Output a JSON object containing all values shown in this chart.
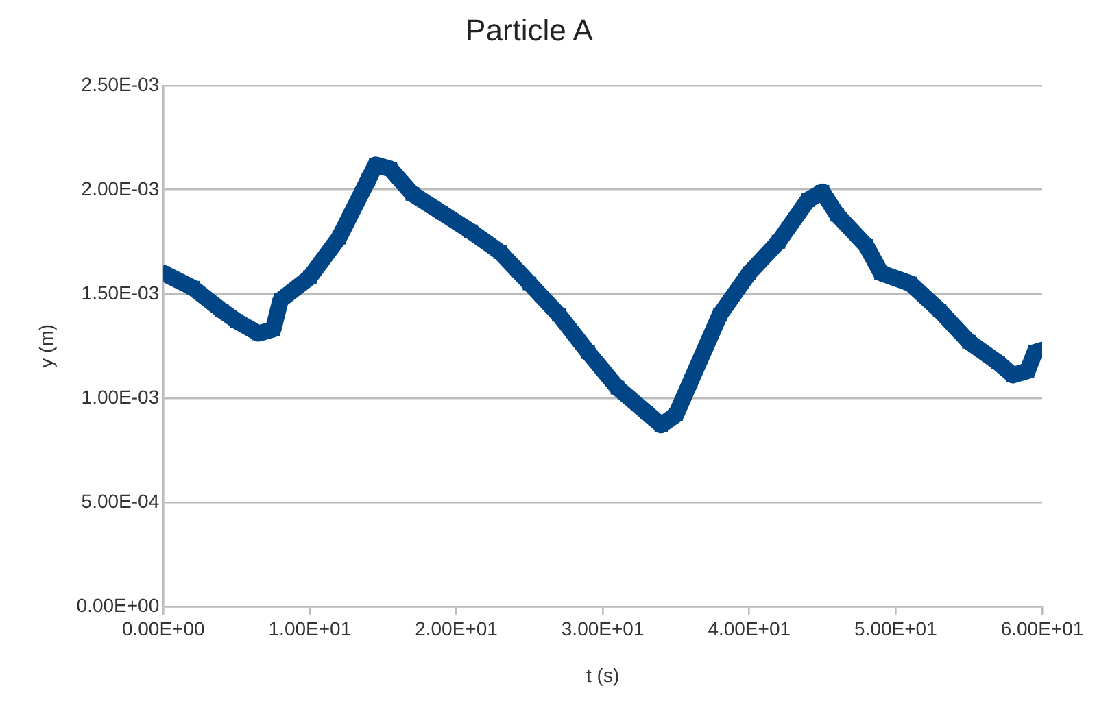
{
  "chart_data": {
    "type": "line",
    "title": "Particle A",
    "xlabel": "t (s)",
    "ylabel": "y (m)",
    "marker": "square",
    "grid": "y",
    "legend": false,
    "x": [
      0,
      2,
      4,
      5,
      6.5,
      7.5,
      8,
      10,
      12,
      14,
      14.5,
      15.5,
      17,
      19,
      21,
      23,
      25,
      27,
      29,
      31,
      33,
      34,
      35,
      36,
      38,
      40,
      42,
      44,
      45,
      46,
      48,
      49,
      51,
      53,
      55,
      57,
      58,
      59,
      59.5,
      60
    ],
    "series": [
      {
        "color": "#004586",
        "values": [
          0.0016,
          0.00153,
          0.00142,
          0.00137,
          0.00131,
          0.00133,
          0.00147,
          0.00158,
          0.00177,
          0.00205,
          0.00212,
          0.0021,
          0.00198,
          0.00189,
          0.0018,
          0.0017,
          0.00155,
          0.0014,
          0.00122,
          0.00105,
          0.00093,
          0.00087,
          0.00092,
          0.00108,
          0.0014,
          0.0016,
          0.00175,
          0.00195,
          0.00199,
          0.00188,
          0.00173,
          0.0016,
          0.00155,
          0.00142,
          0.00127,
          0.00117,
          0.00111,
          0.00113,
          0.00122,
          0.00123
        ]
      }
    ],
    "xlim": [
      0,
      60
    ],
    "xticks": [
      {
        "value": 0,
        "label": "0.00E+00"
      },
      {
        "value": 10,
        "label": "1.00E+01"
      },
      {
        "value": 20,
        "label": "2.00E+01"
      },
      {
        "value": 30,
        "label": "3.00E+01"
      },
      {
        "value": 40,
        "label": "4.00E+01"
      },
      {
        "value": 50,
        "label": "5.00E+01"
      },
      {
        "value": 60,
        "label": "6.00E+01"
      }
    ],
    "ylim": [
      0,
      0.0025
    ],
    "yticks": [
      {
        "value": 0,
        "label": "0.00E+00"
      },
      {
        "value": 0.0005,
        "label": "5.00E-04"
      },
      {
        "value": 0.001,
        "label": "1.00E-03"
      },
      {
        "value": 0.0015,
        "label": "1.50E-03"
      },
      {
        "value": 0.002,
        "label": "2.00E-03"
      },
      {
        "value": 0.0025,
        "label": "2.50E-03"
      }
    ]
  }
}
